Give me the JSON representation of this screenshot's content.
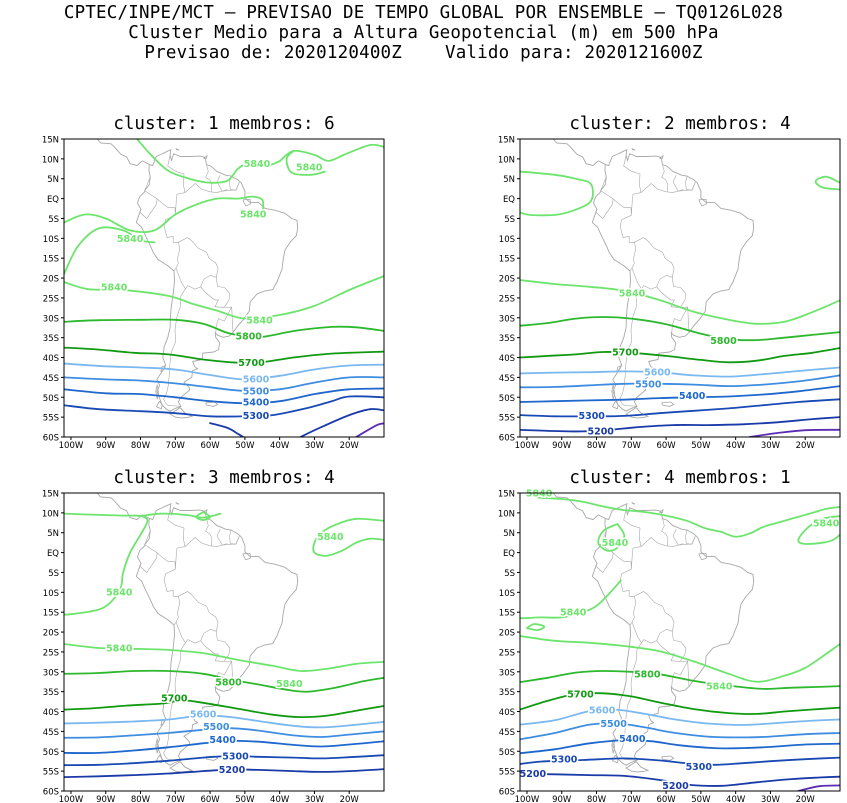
{
  "header": {
    "line1": "CPTEC/INPE/MCT – PREVISAO DE TEMPO GLOBAL POR ENSEMBLE – TQ0126L028",
    "line2": "Cluster Medio para a Altura Geopotencial (m) em 500 hPa",
    "line3": "Previsao de: 2020120400Z    Valido para: 2020121600Z"
  },
  "axes": {
    "lat_labels": [
      "15N",
      "10N",
      "5N",
      "EQ",
      "5S",
      "10S",
      "15S",
      "20S",
      "25S",
      "30S",
      "35S",
      "40S",
      "45S",
      "50S",
      "55S",
      "60S"
    ],
    "lon_labels": [
      "100W",
      "90W",
      "80W",
      "70W",
      "60W",
      "50W",
      "40W",
      "30W",
      "20W"
    ]
  },
  "colors": {
    "5840": "#6de56d",
    "5800": "#2db82d",
    "5700": "#119a11",
    "5600": "#7ab8f0",
    "5500": "#3f8de0",
    "5400": "#1e67cc",
    "5300": "#1849b4",
    "5200": "#1a3aa8",
    "5100": "#5a2db4",
    "map": "#a8a8a8"
  },
  "panels": [
    {
      "title": "cluster: 1   membros: 6",
      "contour_labels": [
        {
          "text": "5840",
          "lon": -46.5,
          "lat": 8.8,
          "level": "5840"
        },
        {
          "text": "5840",
          "lon": -31.5,
          "lat": 7.9,
          "level": "5840"
        },
        {
          "text": "5840",
          "lon": -47.6,
          "lat": -3.9,
          "level": "5840"
        },
        {
          "text": "5840",
          "lon": -83,
          "lat": -10,
          "level": "5840"
        },
        {
          "text": "5840",
          "lon": -87.6,
          "lat": -22.3,
          "level": "5840"
        },
        {
          "text": "5840",
          "lon": -45.8,
          "lat": -30.5,
          "level": "5840"
        },
        {
          "text": "5800",
          "lon": -48.9,
          "lat": -34.6,
          "level": "5800"
        },
        {
          "text": "5700",
          "lon": -48.1,
          "lat": -41.2,
          "level": "5700"
        },
        {
          "text": "5600",
          "lon": -46.8,
          "lat": -45.4,
          "level": "5600"
        },
        {
          "text": "5500",
          "lon": -46.8,
          "lat": -48.4,
          "level": "5500"
        },
        {
          "text": "5400",
          "lon": -46.8,
          "lat": -51.2,
          "level": "5400"
        },
        {
          "text": "5300",
          "lon": -46.8,
          "lat": -54.6,
          "level": "5300"
        }
      ]
    },
    {
      "title": "cluster: 2   membros: 4",
      "contour_labels": [
        {
          "text": "5840",
          "lon": -69.8,
          "lat": -23.8,
          "level": "5840"
        },
        {
          "text": "5800",
          "lon": -43.5,
          "lat": -35.7,
          "level": "5800"
        },
        {
          "text": "5700",
          "lon": -71.7,
          "lat": -38.6,
          "level": "5700"
        },
        {
          "text": "5600",
          "lon": -62.5,
          "lat": -43.6,
          "level": "5600"
        },
        {
          "text": "5500",
          "lon": -65.1,
          "lat": -46.6,
          "level": "5500"
        },
        {
          "text": "5400",
          "lon": -52.5,
          "lat": -49.6,
          "level": "5400"
        },
        {
          "text": "5300",
          "lon": -81.4,
          "lat": -54.6,
          "level": "5300"
        },
        {
          "text": "5200",
          "lon": -78.8,
          "lat": -58.5,
          "level": "5200"
        }
      ]
    },
    {
      "title": "cluster: 3   membros: 4",
      "contour_labels": [
        {
          "text": "5840",
          "lon": -25.4,
          "lat": 4,
          "level": "5840"
        },
        {
          "text": "5840",
          "lon": -86.1,
          "lat": -9.9,
          "level": "5840"
        },
        {
          "text": "5840",
          "lon": -86.1,
          "lat": -24,
          "level": "5840"
        },
        {
          "text": "5800",
          "lon": -54.7,
          "lat": -32.6,
          "level": "5800"
        },
        {
          "text": "5840",
          "lon": -37.2,
          "lat": -33,
          "level": "5840"
        },
        {
          "text": "5700",
          "lon": -70.3,
          "lat": -36.6,
          "level": "5700"
        },
        {
          "text": "5600",
          "lon": -62,
          "lat": -40.6,
          "level": "5600"
        },
        {
          "text": "5500",
          "lon": -58.2,
          "lat": -43.8,
          "level": "5500"
        },
        {
          "text": "5400",
          "lon": -56.4,
          "lat": -47,
          "level": "5400"
        },
        {
          "text": "5300",
          "lon": -52.7,
          "lat": -51.2,
          "level": "5300"
        },
        {
          "text": "5200",
          "lon": -53.7,
          "lat": -54.6,
          "level": "5200"
        }
      ]
    },
    {
      "title": "cluster: 4   membros: 1",
      "contour_labels": [
        {
          "text": "5840",
          "lon": -96.5,
          "lat": 15,
          "level": "5840"
        },
        {
          "text": "5840",
          "lon": -14,
          "lat": 7.4,
          "level": "5840"
        },
        {
          "text": "5840",
          "lon": -74.7,
          "lat": 2.5,
          "level": "5840"
        },
        {
          "text": "5840",
          "lon": -86.7,
          "lat": -15,
          "level": "5840"
        },
        {
          "text": "5800",
          "lon": -65.4,
          "lat": -30.6,
          "level": "5800"
        },
        {
          "text": "5840",
          "lon": -44.7,
          "lat": -33.6,
          "level": "5840"
        },
        {
          "text": "5700",
          "lon": -84.6,
          "lat": -35.6,
          "level": "5700"
        },
        {
          "text": "5600",
          "lon": -78.4,
          "lat": -39.6,
          "level": "5600"
        },
        {
          "text": "5500",
          "lon": -75.1,
          "lat": -43,
          "level": "5500"
        },
        {
          "text": "5400",
          "lon": -69.7,
          "lat": -46.8,
          "level": "5400"
        },
        {
          "text": "5300",
          "lon": -89.3,
          "lat": -52,
          "level": "5300"
        },
        {
          "text": "5300",
          "lon": -50.6,
          "lat": -53.8,
          "level": "5300"
        },
        {
          "text": "5200",
          "lon": -98.3,
          "lat": -55.6,
          "level": "5200"
        },
        {
          "text": "5200",
          "lon": -57.3,
          "lat": -58.6,
          "level": "5200"
        }
      ]
    }
  ]
}
